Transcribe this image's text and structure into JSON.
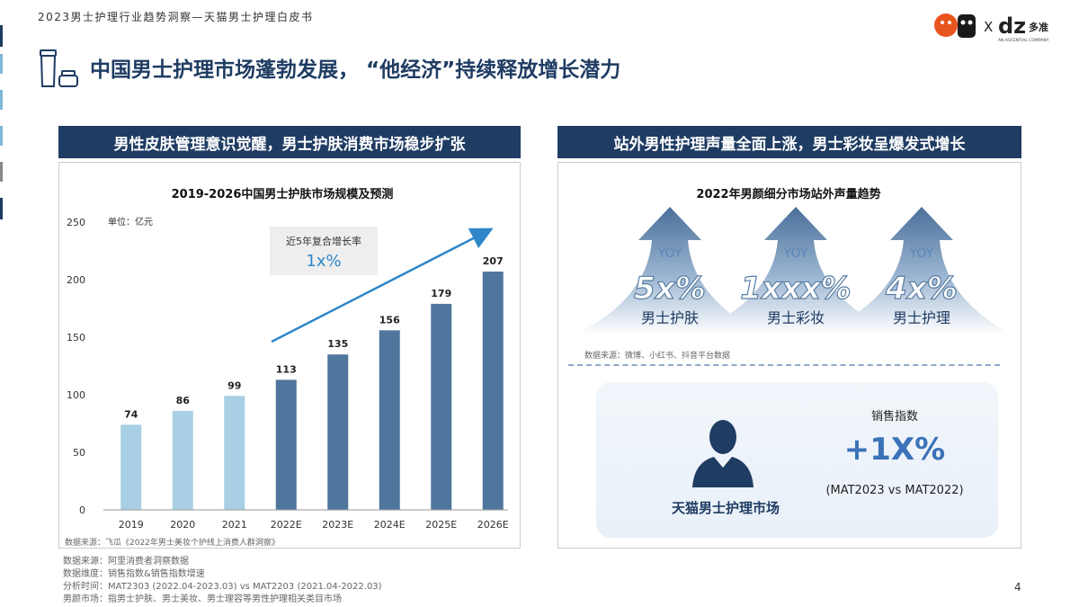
{
  "header": {
    "top_title": "2023男士护理行业趋势洞察—天猫男士护理白皮书",
    "main_title": "中国男士护理市场蓬勃发展， “他经济”持续释放增长潜力",
    "logo_x": "X",
    "logo_dz": "dz",
    "logo_cn": "多准",
    "logo_sub": "AN ASCENTIAL COMPANY"
  },
  "left_panel": {
    "banner": "男性皮肤管理意识觉醒，男士护肤消费市场稳步扩张",
    "unit": "单位：亿元",
    "cagr_label": "近5年复合增长率",
    "cagr_value": "1x%",
    "source": "数据来源：飞瓜《2022年男士美妆个护线上消费人群洞察》"
  },
  "chart_data": {
    "type": "bar",
    "title": "2019-2026中国男士护肤市场规模及预测",
    "categories": [
      "2019",
      "2020",
      "2021",
      "2022E",
      "2023E",
      "2024E",
      "2025E",
      "2026E"
    ],
    "values": [
      74,
      86,
      99,
      113,
      135,
      156,
      179,
      207
    ],
    "ylim": [
      0,
      250
    ],
    "yticks": [
      0,
      50,
      100,
      150,
      200,
      250
    ],
    "colors": {
      "actual": "#a9cfe4",
      "forecast": "#4f769d"
    },
    "forecast_start_index": 3
  },
  "right_panel": {
    "banner": "站外男性护理声量全面上涨，男士彩妆呈爆发式增长",
    "title": "2022年男颜细分市场站外声量趋势",
    "arrows": [
      {
        "yoy": "YOY",
        "value": "5x%",
        "label": "男士护肤"
      },
      {
        "yoy": "YOY",
        "value": "1xxx%",
        "label": "男士彩妆"
      },
      {
        "yoy": "YOY",
        "value": "4x%",
        "label": "男士护理"
      }
    ],
    "source": "数据来源：微博、小红书、抖音平台数据",
    "card": {
      "name": "天猫男士护理市场",
      "metric_label": "销售指数",
      "metric_value": "+1X%",
      "compare": "(MAT2023 vs MAT2022)"
    }
  },
  "footer": {
    "lines": [
      "数据来源：阿里消费者洞察数据",
      "数据维度：销售指数&销售指数增速",
      "分析时间：MAT2303  (2022.04-2023.03)  vs MAT2203  (2021.04-2022.03)",
      "男颜市场：指男士护肤、男士美妆、男士理容等男性护理相关类目市场"
    ],
    "page_number": "4"
  },
  "colors": {
    "navy": "#1f3c63",
    "light_blue": "#a9cfe4",
    "mid_blue": "#4f769d",
    "arrow_line": "#2f86c8"
  }
}
